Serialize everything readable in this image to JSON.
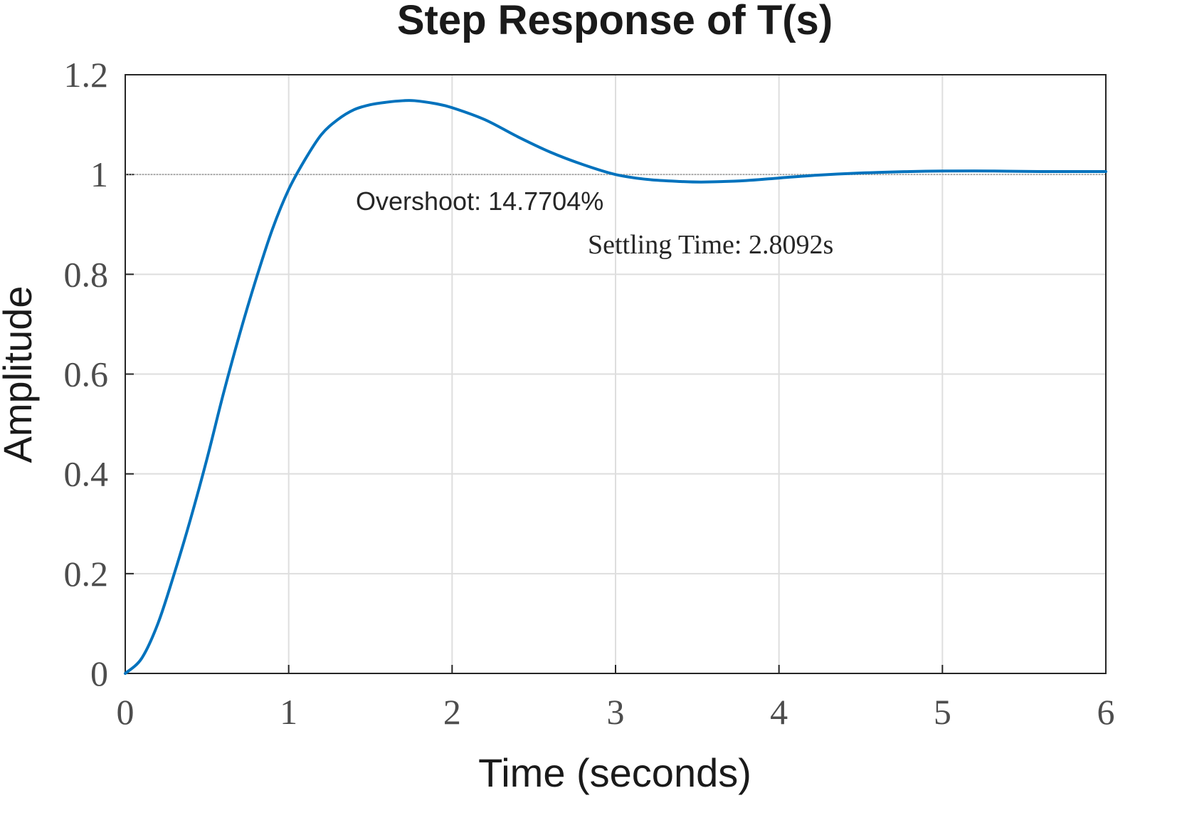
{
  "chart_data": {
    "type": "line",
    "title": "Step Response of T(s)",
    "xlabel": "Time (seconds)",
    "ylabel": "Amplitude",
    "xlim": [
      0,
      6
    ],
    "ylim": [
      0,
      1.2
    ],
    "xticks": [
      "0",
      "1",
      "2",
      "3",
      "4",
      "5",
      "6"
    ],
    "yticks": [
      "0",
      "0.2",
      "0.4",
      "0.6",
      "0.8",
      "1",
      "1.2"
    ],
    "grid": true,
    "reference_line": {
      "y": 1,
      "style": "dotted"
    },
    "series": [
      {
        "color": "#0072BD",
        "x": [
          0,
          0.1,
          0.2,
          0.3,
          0.4,
          0.5,
          0.6,
          0.7,
          0.8,
          0.9,
          1.0,
          1.1,
          1.2,
          1.3,
          1.4,
          1.5,
          1.6,
          1.7,
          1.77,
          1.9,
          2.0,
          2.2,
          2.4,
          2.6,
          2.8,
          3.0,
          3.2,
          3.4,
          3.55,
          3.8,
          4.0,
          4.2,
          4.5,
          4.8,
          5.0,
          5.3,
          5.6,
          6.0
        ],
        "y": [
          0,
          0.03,
          0.1,
          0.2,
          0.31,
          0.43,
          0.56,
          0.68,
          0.79,
          0.89,
          0.97,
          1.03,
          1.08,
          1.11,
          1.13,
          1.14,
          1.145,
          1.148,
          1.148,
          1.142,
          1.134,
          1.11,
          1.076,
          1.045,
          1.02,
          1.0,
          0.99,
          0.986,
          0.985,
          0.988,
          0.993,
          0.998,
          1.003,
          1.006,
          1.007,
          1.007,
          1.006,
          1.006
        ]
      }
    ],
    "annotations": [
      {
        "text": "Overshoot: 14.7704%"
      },
      {
        "text": "Settling Time: 2.8092s"
      }
    ]
  }
}
